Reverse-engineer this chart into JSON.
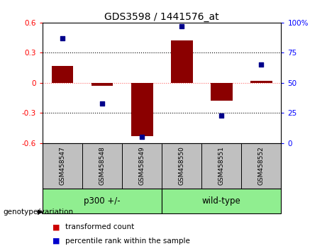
{
  "title": "GDS3598 / 1441576_at",
  "samples": [
    "GSM458547",
    "GSM458548",
    "GSM458549",
    "GSM458550",
    "GSM458551",
    "GSM458552"
  ],
  "red_values": [
    0.17,
    -0.03,
    -0.53,
    0.42,
    -0.18,
    0.02
  ],
  "blue_values_pct": [
    87,
    33,
    5,
    97,
    23,
    65
  ],
  "ylim_left": [
    -0.6,
    0.6
  ],
  "ylim_right": [
    0,
    100
  ],
  "yticks_left": [
    -0.6,
    -0.3,
    0.0,
    0.3,
    0.6
  ],
  "yticks_right": [
    0,
    25,
    50,
    75,
    100
  ],
  "ytick_labels_left": [
    "-0.6",
    "-0.3",
    "0",
    "0.3",
    "0.6"
  ],
  "ytick_labels_right": [
    "0",
    "25",
    "50",
    "75",
    "100%"
  ],
  "group_bg_color": "#C0C0C0",
  "group_label_color": "#90EE90",
  "bar_color": "#8B0000",
  "dot_color": "#00008B",
  "legend_bar_color": "#CC0000",
  "legend_dot_color": "#0000CC",
  "zero_line_color": "#FF6666",
  "dotted_line_color": "#000000",
  "bar_width": 0.55,
  "bottom_label": "genotype/variation",
  "group_labels": [
    "p300 +/-",
    "wild-type"
  ],
  "group_ranges": [
    [
      0,
      2
    ],
    [
      3,
      5
    ]
  ]
}
